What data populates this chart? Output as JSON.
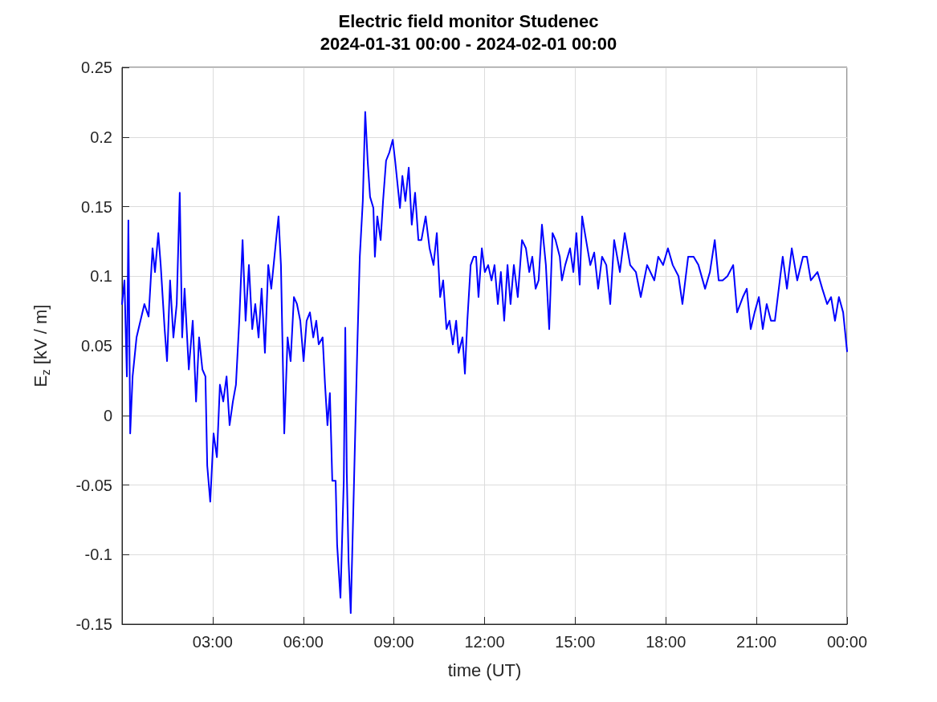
{
  "chart_data": {
    "type": "line",
    "title": "Electric field monitor Studenec",
    "subtitle": "2024-01-31 00:00 - 2024-02-01 00:00",
    "xlabel": "time (UT)",
    "ylabel": "E$_{z}$ [kV / m]",
    "xlim": [
      0,
      24
    ],
    "xticks": [
      {
        "value": 0,
        "label": null
      },
      {
        "value": 3,
        "label": "03:00"
      },
      {
        "value": 6,
        "label": "06:00"
      },
      {
        "value": 9,
        "label": "09:00"
      },
      {
        "value": 12,
        "label": "12:00"
      },
      {
        "value": 15,
        "label": "15:00"
      },
      {
        "value": 18,
        "label": "18:00"
      },
      {
        "value": 21,
        "label": "21:00"
      },
      {
        "value": 24,
        "label": "00:00"
      }
    ],
    "ylim": [
      -0.15,
      0.25
    ],
    "yticks": [
      -0.15,
      -0.1,
      -0.05,
      0,
      0.05,
      0.1,
      0.15,
      0.2,
      0.25
    ],
    "grid": true,
    "marker": "none",
    "line_style": "solid",
    "x": [
      0,
      0.08,
      0.16,
      0.21,
      0.27,
      0.35,
      0.48,
      0.61,
      0.74,
      0.88,
      1.01,
      1.09,
      1.2,
      1.28,
      1.41,
      1.49,
      1.59,
      1.7,
      1.81,
      1.91,
      1.99,
      2.07,
      2.21,
      2.34,
      2.45,
      2.55,
      2.66,
      2.76,
      2.82,
      2.92,
      3.03,
      3.14,
      3.24,
      3.35,
      3.46,
      3.56,
      3.67,
      3.77,
      3.88,
      3.99,
      4.09,
      4.2,
      4.31,
      4.41,
      4.52,
      4.62,
      4.73,
      4.84,
      4.94,
      5.1,
      5.18,
      5.26,
      5.37,
      5.48,
      5.58,
      5.69,
      5.79,
      5.9,
      6.01,
      6.11,
      6.22,
      6.33,
      6.43,
      6.51,
      6.64,
      6.72,
      6.8,
      6.88,
      6.96,
      7.07,
      7.12,
      7.23,
      7.34,
      7.39,
      7.44,
      7.5,
      7.57,
      7.68,
      7.79,
      7.87,
      7.97,
      8.05,
      8.13,
      8.21,
      8.32,
      8.37,
      8.45,
      8.56,
      8.64,
      8.74,
      8.85,
      8.96,
      9.04,
      9.12,
      9.2,
      9.28,
      9.38,
      9.49,
      9.59,
      9.7,
      9.81,
      9.91,
      10.05,
      10.18,
      10.31,
      10.42,
      10.53,
      10.63,
      10.74,
      10.84,
      10.95,
      11.06,
      11.14,
      11.27,
      11.35,
      11.43,
      11.54,
      11.64,
      11.72,
      11.8,
      11.91,
      12.01,
      12.12,
      12.23,
      12.33,
      12.44,
      12.54,
      12.65,
      12.76,
      12.86,
      12.97,
      13.1,
      13.24,
      13.37,
      13.48,
      13.58,
      13.69,
      13.79,
      13.9,
      14.03,
      14.14,
      14.25,
      14.35,
      14.49,
      14.56,
      14.67,
      14.83,
      14.94,
      15.04,
      15.15,
      15.23,
      15.36,
      15.5,
      15.63,
      15.76,
      15.89,
      16.03,
      16.16,
      16.29,
      16.48,
      16.64,
      16.82,
      17.01,
      17.17,
      17.38,
      17.62,
      17.75,
      17.91,
      18.07,
      18.23,
      18.42,
      18.55,
      18.74,
      18.92,
      19.08,
      19.3,
      19.46,
      19.62,
      19.75,
      19.88,
      20.04,
      20.23,
      20.36,
      20.55,
      20.68,
      20.81,
      20.94,
      21.08,
      21.21,
      21.34,
      21.48,
      21.61,
      21.79,
      21.87,
      22.01,
      22.17,
      22.35,
      22.54,
      22.67,
      22.8,
      23.02,
      23.18,
      23.34,
      23.47,
      23.6,
      23.73,
      23.87,
      24
    ],
    "series": [
      {
        "color": "#0000ff",
        "values": [
          0.08,
          0.097,
          0.028,
          0.14,
          -0.013,
          0.028,
          0.056,
          0.068,
          0.08,
          0.071,
          0.12,
          0.103,
          0.131,
          0.108,
          0.062,
          0.039,
          0.097,
          0.056,
          0.08,
          0.16,
          0.056,
          0.091,
          0.033,
          0.068,
          0.01,
          0.056,
          0.033,
          0.028,
          -0.036,
          -0.062,
          -0.013,
          -0.03,
          0.022,
          0.01,
          0.028,
          -0.007,
          0.01,
          0.022,
          0.068,
          0.126,
          0.068,
          0.108,
          0.062,
          0.08,
          0.056,
          0.091,
          0.045,
          0.108,
          0.091,
          0.126,
          0.143,
          0.108,
          -0.013,
          0.056,
          0.039,
          0.085,
          0.08,
          0.068,
          0.039,
          0.068,
          0.074,
          0.056,
          0.068,
          0.051,
          0.056,
          0.022,
          -0.007,
          0.016,
          -0.047,
          -0.047,
          -0.093,
          -0.131,
          -0.047,
          0.063,
          -0.042,
          -0.105,
          -0.142,
          -0.047,
          0.051,
          0.114,
          0.154,
          0.218,
          0.183,
          0.157,
          0.149,
          0.114,
          0.143,
          0.126,
          0.154,
          0.183,
          0.189,
          0.198,
          0.183,
          0.166,
          0.149,
          0.172,
          0.154,
          0.178,
          0.137,
          0.16,
          0.126,
          0.126,
          0.143,
          0.12,
          0.108,
          0.131,
          0.085,
          0.097,
          0.062,
          0.068,
          0.051,
          0.068,
          0.045,
          0.056,
          0.03,
          0.068,
          0.108,
          0.114,
          0.114,
          0.085,
          0.12,
          0.103,
          0.108,
          0.097,
          0.108,
          0.08,
          0.103,
          0.068,
          0.108,
          0.08,
          0.108,
          0.085,
          0.126,
          0.12,
          0.103,
          0.114,
          0.091,
          0.097,
          0.137,
          0.108,
          0.062,
          0.131,
          0.126,
          0.114,
          0.097,
          0.108,
          0.12,
          0.103,
          0.131,
          0.094,
          0.143,
          0.126,
          0.108,
          0.117,
          0.091,
          0.114,
          0.108,
          0.08,
          0.126,
          0.103,
          0.131,
          0.108,
          0.103,
          0.085,
          0.108,
          0.097,
          0.114,
          0.108,
          0.12,
          0.108,
          0.1,
          0.08,
          0.114,
          0.114,
          0.108,
          0.091,
          0.103,
          0.126,
          0.097,
          0.097,
          0.1,
          0.108,
          0.074,
          0.085,
          0.091,
          0.062,
          0.074,
          0.085,
          0.062,
          0.08,
          0.068,
          0.068,
          0.1,
          0.114,
          0.091,
          0.12,
          0.097,
          0.114,
          0.114,
          0.097,
          0.103,
          0.091,
          0.08,
          0.085,
          0.068,
          0.085,
          0.074,
          0.046
        ]
      }
    ]
  }
}
